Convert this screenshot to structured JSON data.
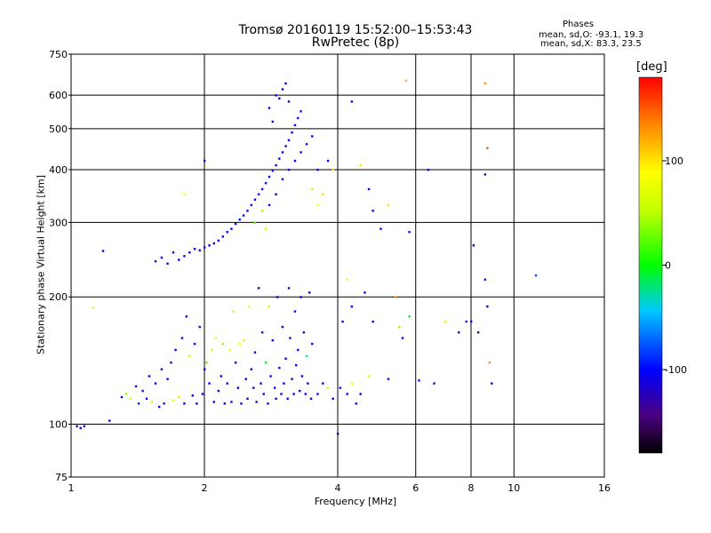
{
  "title": "Tromsø 20160119 15:52:00–15:53:43",
  "subtitle": "RwPretec (8p)",
  "phases": {
    "title": "Phases",
    "line_o": "mean, sd,O: -93.1, 19.3",
    "line_x": "mean, sd,X: 83.3, 23.5"
  },
  "colorbar": {
    "unit": "[deg]",
    "ticks": [
      {
        "value": 100,
        "label": "100"
      },
      {
        "value": 0,
        "label": "0"
      },
      {
        "value": -100,
        "label": "-100"
      }
    ],
    "range": [
      -180,
      180
    ]
  },
  "chart_data": {
    "type": "scatter",
    "xlabel": "Frequency [MHz]",
    "ylabel": "Stationary phase Virtual Height [km]",
    "xscale": "log",
    "yscale": "log",
    "xlim": [
      1,
      16
    ],
    "ylim": [
      75,
      750
    ],
    "xticks": [
      {
        "value": 1,
        "label": "1"
      },
      {
        "value": 2,
        "label": "2"
      },
      {
        "value": 4,
        "label": "4"
      },
      {
        "value": 6,
        "label": "6"
      },
      {
        "value": 8,
        "label": "8"
      },
      {
        "value": 10,
        "label": "10"
      },
      {
        "value": 16,
        "label": "16"
      }
    ],
    "yticks": [
      {
        "value": 75,
        "label": "75"
      },
      {
        "value": 100,
        "label": "100"
      },
      {
        "value": 200,
        "label": "200"
      },
      {
        "value": 300,
        "label": "300"
      },
      {
        "value": 400,
        "label": "400"
      },
      {
        "value": 500,
        "label": "500"
      },
      {
        "value": 600,
        "label": "600"
      },
      {
        "value": 750,
        "label": "750"
      }
    ],
    "grid": true,
    "points": [
      [
        1.03,
        99,
        -100
      ],
      [
        1.05,
        98,
        -110
      ],
      [
        1.07,
        99,
        -105
      ],
      [
        1.12,
        189,
        80
      ],
      [
        1.18,
        257,
        -110
      ],
      [
        1.22,
        102,
        -100
      ],
      [
        1.3,
        116,
        -110
      ],
      [
        1.33,
        118,
        40
      ],
      [
        1.36,
        115,
        60
      ],
      [
        1.4,
        123,
        -100
      ],
      [
        1.42,
        112,
        -90
      ],
      [
        1.45,
        120,
        -120
      ],
      [
        1.48,
        115,
        -100
      ],
      [
        1.5,
        130,
        -110
      ],
      [
        1.52,
        113,
        60
      ],
      [
        1.55,
        125,
        -105
      ],
      [
        1.58,
        110,
        -100
      ],
      [
        1.6,
        135,
        -110
      ],
      [
        1.62,
        112,
        -95
      ],
      [
        1.65,
        128,
        -100
      ],
      [
        1.68,
        140,
        -110
      ],
      [
        1.7,
        114,
        80
      ],
      [
        1.72,
        150,
        -100
      ],
      [
        1.75,
        116,
        60
      ],
      [
        1.78,
        160,
        -105
      ],
      [
        1.8,
        112,
        -110
      ],
      [
        1.82,
        180,
        -110
      ],
      [
        1.85,
        145,
        60
      ],
      [
        1.88,
        117,
        -100
      ],
      [
        1.9,
        155,
        -110
      ],
      [
        1.92,
        112,
        -120
      ],
      [
        1.95,
        170,
        -100
      ],
      [
        1.98,
        118,
        -110
      ],
      [
        2.0,
        135,
        -105
      ],
      [
        2.02,
        140,
        20
      ],
      [
        2.05,
        125,
        -110
      ],
      [
        2.08,
        150,
        60
      ],
      [
        2.1,
        113,
        -100
      ],
      [
        2.12,
        160,
        70
      ],
      [
        2.15,
        120,
        -110
      ],
      [
        2.18,
        130,
        -105
      ],
      [
        2.2,
        155,
        40
      ],
      [
        2.22,
        112,
        -100
      ],
      [
        2.25,
        125,
        -110
      ],
      [
        2.28,
        150,
        80
      ],
      [
        2.3,
        113,
        -100
      ],
      [
        2.32,
        185,
        60
      ],
      [
        2.35,
        140,
        -110
      ],
      [
        2.38,
        122,
        -100
      ],
      [
        2.4,
        155,
        90
      ],
      [
        2.42,
        112,
        -110
      ],
      [
        2.45,
        158,
        100
      ],
      [
        2.48,
        128,
        -100
      ],
      [
        2.5,
        115,
        -110
      ],
      [
        2.52,
        190,
        70
      ],
      [
        2.55,
        135,
        -105
      ],
      [
        2.58,
        122,
        -110
      ],
      [
        2.6,
        148,
        -100
      ],
      [
        2.62,
        113,
        -110
      ],
      [
        2.65,
        210,
        -120
      ],
      [
        2.68,
        125,
        -100
      ],
      [
        2.7,
        165,
        -110
      ],
      [
        2.72,
        118,
        -100
      ],
      [
        2.75,
        140,
        0
      ],
      [
        2.78,
        112,
        -110
      ],
      [
        2.8,
        190,
        60
      ],
      [
        2.82,
        130,
        -100
      ],
      [
        2.85,
        158,
        -110
      ],
      [
        2.88,
        122,
        -100
      ],
      [
        2.9,
        115,
        -105
      ],
      [
        2.92,
        200,
        -110
      ],
      [
        2.95,
        136,
        -100
      ],
      [
        2.98,
        118,
        -110
      ],
      [
        3.0,
        170,
        -100
      ],
      [
        3.02,
        125,
        -110
      ],
      [
        3.05,
        143,
        -100
      ],
      [
        3.08,
        115,
        -105
      ],
      [
        3.1,
        210,
        -110
      ],
      [
        3.12,
        160,
        -100
      ],
      [
        3.15,
        128,
        -110
      ],
      [
        3.18,
        118,
        -100
      ],
      [
        3.2,
        185,
        -105
      ],
      [
        3.22,
        138,
        -110
      ],
      [
        3.25,
        150,
        -100
      ],
      [
        3.28,
        120,
        -110
      ],
      [
        3.3,
        200,
        -100
      ],
      [
        3.32,
        130,
        -105
      ],
      [
        3.35,
        165,
        -110
      ],
      [
        3.38,
        118,
        -100
      ],
      [
        3.4,
        145,
        -20
      ],
      [
        3.42,
        125,
        -110
      ],
      [
        3.45,
        205,
        -100
      ],
      [
        3.48,
        115,
        -110
      ],
      [
        3.5,
        155,
        -100
      ],
      [
        3.6,
        118,
        -100
      ],
      [
        3.7,
        125,
        -110
      ],
      [
        3.8,
        122,
        100
      ],
      [
        3.9,
        115,
        -100
      ],
      [
        4.0,
        95,
        -110
      ],
      [
        4.05,
        122,
        -100
      ],
      [
        4.1,
        175,
        -105
      ],
      [
        4.2,
        118,
        -110
      ],
      [
        4.3,
        125,
        80
      ],
      [
        4.4,
        112,
        -100
      ],
      [
        4.5,
        118,
        -110
      ],
      [
        4.6,
        205,
        -100
      ],
      [
        4.7,
        130,
        60
      ],
      [
        4.8,
        175,
        -110
      ],
      [
        5.2,
        128,
        -100
      ],
      [
        5.4,
        200,
        130
      ],
      [
        5.5,
        170,
        40
      ],
      [
        5.6,
        160,
        -110
      ],
      [
        5.8,
        180,
        0
      ],
      [
        6.1,
        127,
        -100
      ],
      [
        6.6,
        125,
        -100
      ],
      [
        7.0,
        175,
        100
      ],
      [
        7.5,
        165,
        -110
      ],
      [
        7.8,
        175,
        -90
      ],
      [
        8.0,
        175,
        -100
      ],
      [
        8.1,
        265,
        -110
      ],
      [
        8.3,
        165,
        -120
      ],
      [
        8.6,
        220,
        -100
      ],
      [
        8.7,
        190,
        -110
      ],
      [
        8.8,
        140,
        130
      ],
      [
        8.9,
        125,
        -110
      ],
      [
        11.2,
        225,
        -80
      ],
      [
        1.55,
        243,
        -110
      ],
      [
        1.6,
        248,
        -105
      ],
      [
        1.65,
        240,
        -110
      ],
      [
        1.7,
        255,
        -100
      ],
      [
        1.75,
        245,
        -110
      ],
      [
        1.8,
        250,
        -105
      ],
      [
        1.85,
        255,
        -110
      ],
      [
        1.9,
        260,
        -100
      ],
      [
        1.95,
        258,
        -110
      ],
      [
        2.0,
        262,
        -100
      ],
      [
        2.05,
        265,
        -105
      ],
      [
        2.1,
        268,
        -110
      ],
      [
        2.15,
        272,
        -100
      ],
      [
        2.2,
        278,
        -110
      ],
      [
        2.25,
        285,
        -100
      ],
      [
        2.3,
        290,
        -105
      ],
      [
        2.35,
        298,
        -110
      ],
      [
        2.4,
        305,
        -100
      ],
      [
        2.45,
        312,
        -110
      ],
      [
        2.5,
        320,
        -100
      ],
      [
        2.55,
        330,
        -110
      ],
      [
        2.6,
        340,
        -100
      ],
      [
        2.65,
        350,
        -105
      ],
      [
        2.7,
        360,
        -110
      ],
      [
        2.75,
        372,
        -100
      ],
      [
        2.8,
        385,
        -110
      ],
      [
        2.85,
        398,
        -100
      ],
      [
        2.9,
        410,
        -105
      ],
      [
        2.95,
        425,
        -110
      ],
      [
        3.0,
        440,
        -100
      ],
      [
        3.05,
        455,
        -110
      ],
      [
        3.1,
        470,
        -100
      ],
      [
        3.15,
        490,
        -105
      ],
      [
        3.2,
        510,
        -110
      ],
      [
        3.25,
        530,
        -100
      ],
      [
        3.3,
        550,
        -110
      ],
      [
        2.6,
        300,
        20
      ],
      [
        2.7,
        320,
        40
      ],
      [
        2.75,
        290,
        60
      ],
      [
        2.8,
        330,
        -100
      ],
      [
        2.9,
        350,
        -110
      ],
      [
        3.0,
        380,
        -100
      ],
      [
        3.1,
        400,
        -110
      ],
      [
        3.2,
        420,
        -100
      ],
      [
        3.3,
        440,
        -105
      ],
      [
        3.4,
        460,
        -110
      ],
      [
        3.5,
        480,
        -100
      ],
      [
        3.6,
        400,
        -110
      ],
      [
        3.5,
        360,
        60
      ],
      [
        3.6,
        330,
        80
      ],
      [
        3.7,
        350,
        100
      ],
      [
        3.8,
        420,
        -100
      ],
      [
        3.9,
        400,
        100
      ],
      [
        2.8,
        560,
        -110
      ],
      [
        2.9,
        600,
        -100
      ],
      [
        3.0,
        620,
        -110
      ],
      [
        3.05,
        640,
        -105
      ],
      [
        2.95,
        590,
        -100
      ],
      [
        3.1,
        580,
        -110
      ],
      [
        2.85,
        520,
        -100
      ],
      [
        4.3,
        580,
        -100
      ],
      [
        4.5,
        410,
        100
      ],
      [
        4.7,
        360,
        -100
      ],
      [
        4.8,
        320,
        -110
      ],
      [
        5.0,
        290,
        -100
      ],
      [
        5.2,
        330,
        100
      ],
      [
        5.7,
        650,
        120
      ],
      [
        5.8,
        285,
        -100
      ],
      [
        6.4,
        400,
        -110
      ],
      [
        8.6,
        640,
        130
      ],
      [
        8.7,
        450,
        150
      ],
      [
        8.6,
        390,
        -140
      ],
      [
        4.2,
        220,
        80
      ],
      [
        4.3,
        190,
        -100
      ],
      [
        2.0,
        420,
        -100
      ],
      [
        1.8,
        350,
        80
      ]
    ]
  }
}
